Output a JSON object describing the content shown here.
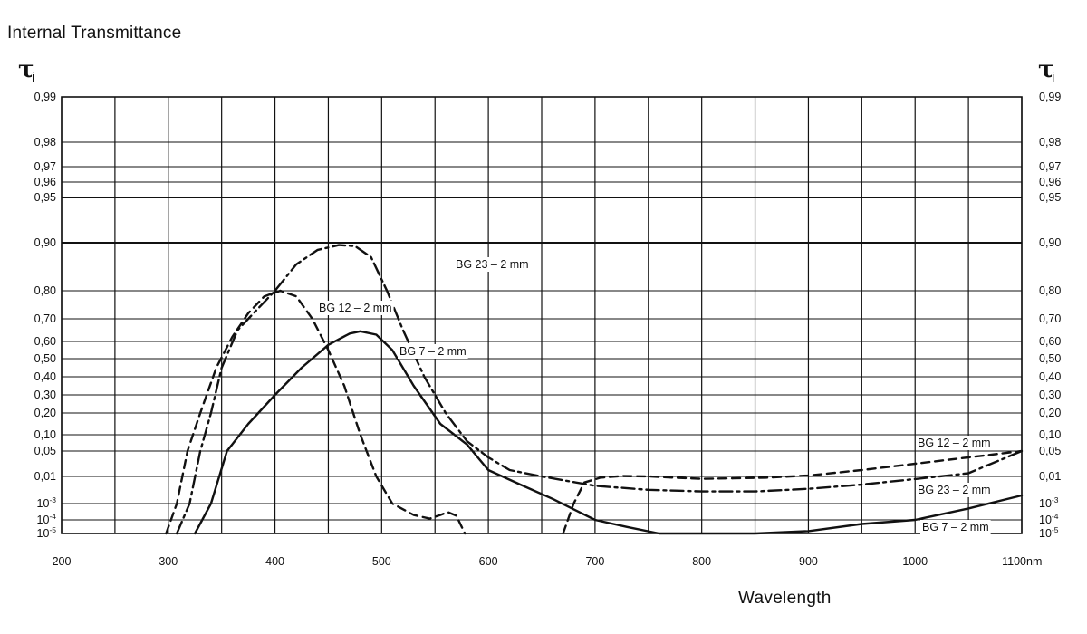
{
  "chart_data": {
    "type": "line",
    "title": "Internal Transmittance",
    "xlabel": "Wavelength",
    "x_unit": "nm",
    "ylabel_left": "τ",
    "ylabel_left_sub": "i",
    "ylabel_right": "τ",
    "ylabel_right_sub": "i",
    "xlim": [
      200,
      1100
    ],
    "x_gridlines": [
      200,
      250,
      300,
      350,
      400,
      450,
      500,
      550,
      600,
      650,
      700,
      750,
      800,
      850,
      900,
      950,
      1000,
      1050,
      1100
    ],
    "x_ticks": [
      {
        "value": 200,
        "label": "200"
      },
      {
        "value": 300,
        "label": "300"
      },
      {
        "value": 400,
        "label": "400"
      },
      {
        "value": 500,
        "label": "500"
      },
      {
        "value": 600,
        "label": "600"
      },
      {
        "value": 700,
        "label": "700"
      },
      {
        "value": 800,
        "label": "800"
      },
      {
        "value": 900,
        "label": "900"
      },
      {
        "value": 1000,
        "label": "1000"
      },
      {
        "value": 1100,
        "label": "1100"
      }
    ],
    "y_scale": "diabatic (non-linear transmittance scale)",
    "y_ticks": [
      {
        "value": 0.99,
        "label": "0,99"
      },
      {
        "value": 0.98,
        "label": "0,98"
      },
      {
        "value": 0.97,
        "label": "0,97"
      },
      {
        "value": 0.96,
        "label": "0,96"
      },
      {
        "value": 0.95,
        "label": "0,95"
      },
      {
        "value": 0.9,
        "label": "0,90"
      },
      {
        "value": 0.8,
        "label": "0,80"
      },
      {
        "value": 0.7,
        "label": "0,70"
      },
      {
        "value": 0.6,
        "label": "0,60"
      },
      {
        "value": 0.5,
        "label": "0,50"
      },
      {
        "value": 0.4,
        "label": "0,40"
      },
      {
        "value": 0.3,
        "label": "0,30"
      },
      {
        "value": 0.2,
        "label": "0,20"
      },
      {
        "value": 0.1,
        "label": "0,10"
      },
      {
        "value": 0.05,
        "label": "0,05"
      },
      {
        "value": 0.01,
        "label": "0,01"
      },
      {
        "value": 0.001,
        "label": "10",
        "exp": "-3"
      },
      {
        "value": 0.0001,
        "label": "10",
        "exp": "-4"
      },
      {
        "value": 1e-05,
        "label": "10",
        "exp": "-5"
      }
    ],
    "series": [
      {
        "name": "BG 23 – 2 mm",
        "label": "BG 23 – 2 mm",
        "label2": "BG 23 – 2 mm",
        "style": "dashdot",
        "points": [
          [
            308,
            1e-05
          ],
          [
            320,
            0.001
          ],
          [
            330,
            0.05
          ],
          [
            340,
            0.2
          ],
          [
            350,
            0.45
          ],
          [
            365,
            0.65
          ],
          [
            380,
            0.72
          ],
          [
            400,
            0.8
          ],
          [
            420,
            0.855
          ],
          [
            440,
            0.885
          ],
          [
            460,
            0.895
          ],
          [
            475,
            0.893
          ],
          [
            490,
            0.87
          ],
          [
            505,
            0.8
          ],
          [
            520,
            0.65
          ],
          [
            540,
            0.4
          ],
          [
            560,
            0.2
          ],
          [
            580,
            0.08
          ],
          [
            600,
            0.04
          ],
          [
            620,
            0.02
          ],
          [
            650,
            0.01
          ],
          [
            700,
            0.0045
          ],
          [
            750,
            0.0032
          ],
          [
            800,
            0.0028
          ],
          [
            850,
            0.0028
          ],
          [
            900,
            0.0035
          ],
          [
            950,
            0.005
          ],
          [
            1000,
            0.008
          ],
          [
            1050,
            0.015
          ],
          [
            1100,
            0.05
          ]
        ]
      },
      {
        "name": "BG 12 – 2 mm",
        "label": "BG 12 – 2 mm",
        "label2": "BG 12 – 2 mm",
        "style": "dashed",
        "segments": [
          [
            [
              298,
              1e-05
            ],
            [
              308,
              0.001
            ],
            [
              318,
              0.05
            ],
            [
              330,
              0.2
            ],
            [
              345,
              0.45
            ],
            [
              360,
              0.62
            ],
            [
              375,
              0.72
            ],
            [
              390,
              0.78
            ],
            [
              405,
              0.8
            ],
            [
              420,
              0.78
            ],
            [
              435,
              0.7
            ],
            [
              450,
              0.55
            ],
            [
              465,
              0.35
            ],
            [
              480,
              0.1
            ],
            [
              495,
              0.01
            ],
            [
              510,
              0.001
            ],
            [
              530,
              0.0002
            ],
            [
              545,
              0.00012
            ],
            [
              555,
              0.0002
            ],
            [
              562,
              0.0003
            ],
            [
              570,
              0.00018
            ],
            [
              578,
              1e-05
            ]
          ],
          [
            [
              670,
              1e-05
            ],
            [
              680,
              0.001
            ],
            [
              690,
              0.006
            ],
            [
              705,
              0.009
            ],
            [
              725,
              0.0105
            ],
            [
              750,
              0.01
            ],
            [
              775,
              0.009
            ],
            [
              800,
              0.0082
            ],
            [
              830,
              0.0085
            ],
            [
              860,
              0.009
            ],
            [
              900,
              0.0115
            ],
            [
              950,
              0.02
            ],
            [
              1000,
              0.03
            ],
            [
              1050,
              0.04
            ],
            [
              1100,
              0.05
            ]
          ]
        ]
      },
      {
        "name": "BG 7 – 2 mm",
        "label": "BG 7 – 2 mm",
        "label2": "BG 7 – 2 mm",
        "style": "solid",
        "points": [
          [
            325,
            1e-05
          ],
          [
            340,
            0.001
          ],
          [
            355,
            0.05
          ],
          [
            375,
            0.15
          ],
          [
            400,
            0.3
          ],
          [
            425,
            0.45
          ],
          [
            450,
            0.58
          ],
          [
            470,
            0.635
          ],
          [
            480,
            0.645
          ],
          [
            495,
            0.63
          ],
          [
            510,
            0.55
          ],
          [
            530,
            0.35
          ],
          [
            555,
            0.15
          ],
          [
            580,
            0.07
          ],
          [
            600,
            0.02
          ],
          [
            630,
            0.005
          ],
          [
            660,
            0.0015
          ],
          [
            700,
            0.0001
          ],
          [
            730,
            3e-05
          ],
          [
            760,
            1e-05
          ],
          [
            800,
            1e-05
          ],
          [
            850,
            1e-05
          ],
          [
            900,
            1.5e-05
          ],
          [
            950,
            5e-05
          ],
          [
            1000,
            0.0001
          ],
          [
            1050,
            0.0005
          ],
          [
            1100,
            0.002
          ]
        ]
      }
    ]
  }
}
